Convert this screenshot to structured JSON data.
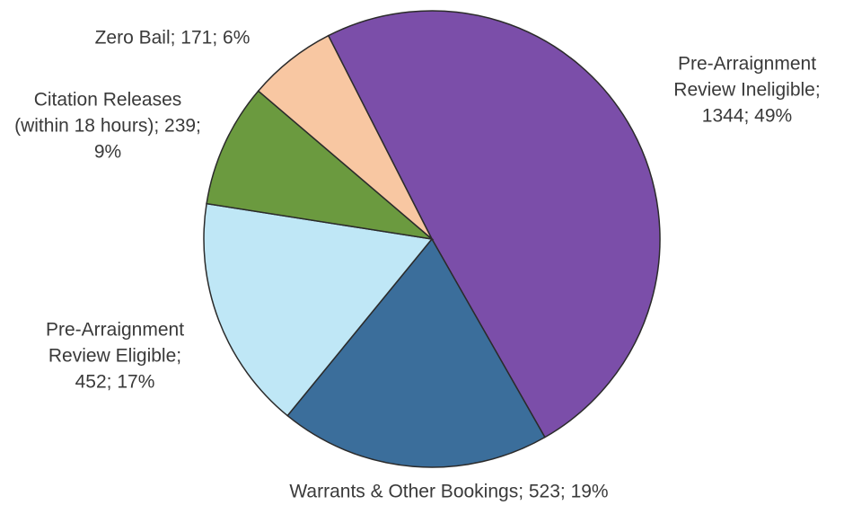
{
  "chart_data": {
    "type": "pie",
    "categories": [
      "Pre-Arraignment Review Ineligible",
      "Warrants & Other Bookings",
      "Pre-Arraignment Review Eligible",
      "Citation Releases (within 18 hours)",
      "Zero Bail"
    ],
    "values": [
      1344,
      523,
      452,
      239,
      171
    ],
    "value_labels": [
      "Pre-Arraignment Review Ineligible; 1344; 49%",
      "Warrants & Other Bookings; 523; 19%",
      "Pre-Arraignment Review Eligible; 452; 17%",
      "Citation Releases (within 18 hours); 239; 9%",
      "Zero Bail; 171; 6%"
    ],
    "colors": [
      "#7b4ea9",
      "#3b6e9b",
      "#bfe7f6",
      "#6b9a3f",
      "#f8c7a2"
    ]
  }
}
